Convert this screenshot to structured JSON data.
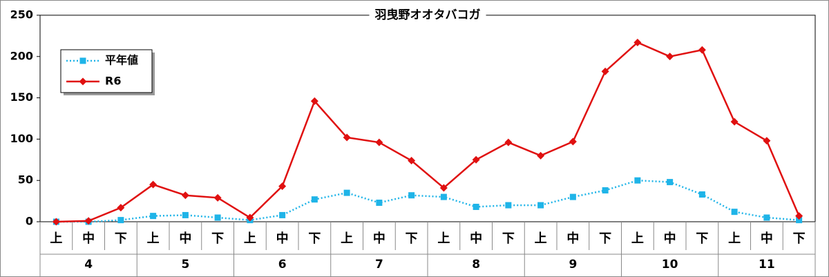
{
  "chart_data": {
    "type": "line",
    "title": "羽曳野オオタバコガ",
    "categories": [
      "上",
      "中",
      "下",
      "上",
      "中",
      "下",
      "上",
      "中",
      "下",
      "上",
      "中",
      "下",
      "上",
      "中",
      "下",
      "上",
      "中",
      "下",
      "上",
      "中",
      "下",
      "上",
      "中",
      "下"
    ],
    "category_groups": [
      "4",
      "5",
      "6",
      "7",
      "8",
      "9",
      "10",
      "11"
    ],
    "series": [
      {
        "name": "平年値",
        "color": "#1fb4e8",
        "line_style": "dotted",
        "marker": "square",
        "values": [
          0,
          0,
          2,
          7,
          8,
          5,
          2,
          8,
          27,
          35,
          23,
          32,
          30,
          18,
          20,
          20,
          30,
          38,
          50,
          48,
          33,
          12,
          5,
          2
        ]
      },
      {
        "name": "R6",
        "color": "#e01010",
        "line_style": "solid",
        "marker": "diamond",
        "values": [
          0,
          1,
          17,
          45,
          32,
          29,
          5,
          43,
          146,
          102,
          96,
          74,
          41,
          75,
          96,
          80,
          97,
          182,
          217,
          200,
          208,
          121,
          98,
          7
        ]
      }
    ],
    "ylim": [
      0,
      250
    ],
    "yticks": [
      0,
      50,
      100,
      150,
      200,
      250
    ],
    "grid": false,
    "legend": "upper left"
  }
}
